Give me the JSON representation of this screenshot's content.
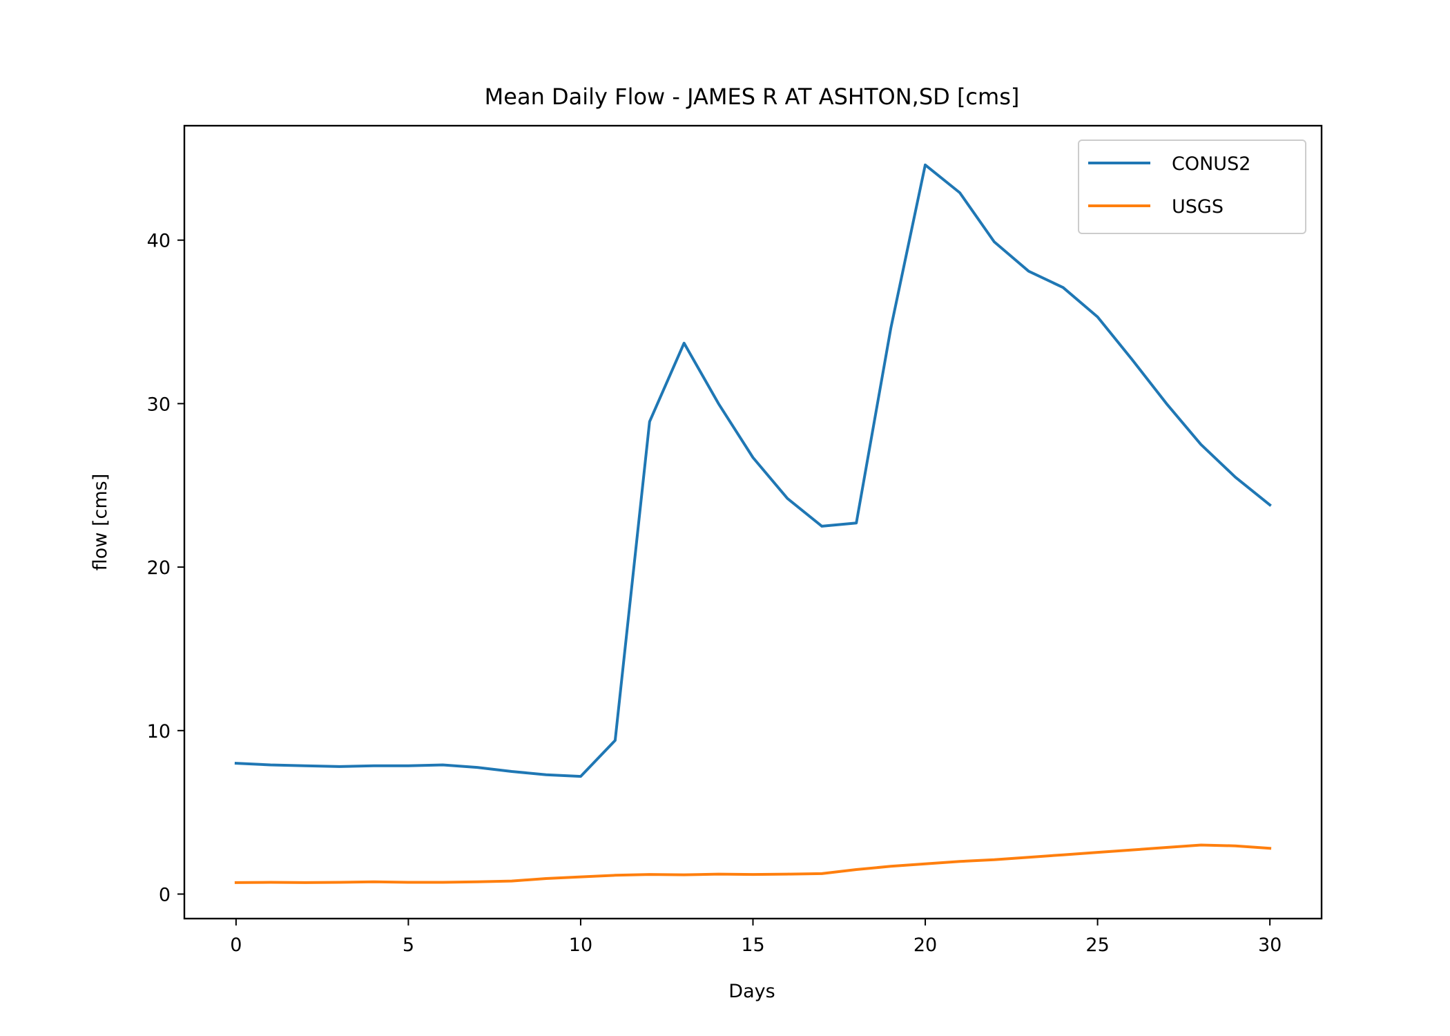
{
  "chart_data": {
    "type": "line",
    "title": "Mean Daily Flow - JAMES R AT ASHTON,SD [cms]",
    "xlabel": "Days",
    "ylabel": "flow [cms]",
    "xlim": [
      -1.5,
      31.5
    ],
    "ylim": [
      -1.5,
      47.0
    ],
    "xticks": [
      0,
      5,
      10,
      15,
      20,
      25,
      30
    ],
    "yticks": [
      0,
      10,
      20,
      30,
      40
    ],
    "grid": false,
    "legend_position": "top-right",
    "x": [
      0,
      1,
      2,
      3,
      4,
      5,
      6,
      7,
      8,
      9,
      10,
      11,
      12,
      13,
      14,
      15,
      16,
      17,
      18,
      19,
      20,
      21,
      22,
      23,
      24,
      25,
      26,
      27,
      28,
      29,
      30
    ],
    "series": [
      {
        "name": "CONUS2",
        "color": "#1f77b4",
        "values": [
          8.0,
          7.9,
          7.85,
          7.8,
          7.85,
          7.85,
          7.9,
          7.75,
          7.5,
          7.3,
          7.2,
          9.4,
          28.9,
          33.7,
          30.0,
          26.7,
          24.2,
          22.5,
          22.7,
          34.6,
          44.6,
          42.9,
          39.9,
          38.1,
          37.1,
          35.3,
          32.7,
          30.0,
          27.5,
          25.5,
          23.8
        ]
      },
      {
        "name": "USGS",
        "color": "#ff7f0e",
        "values": [
          0.7,
          0.72,
          0.7,
          0.72,
          0.75,
          0.72,
          0.72,
          0.75,
          0.8,
          0.95,
          1.05,
          1.15,
          1.2,
          1.18,
          1.22,
          1.2,
          1.22,
          1.25,
          1.5,
          1.7,
          1.85,
          2.0,
          2.1,
          2.25,
          2.4,
          2.55,
          2.7,
          2.85,
          3.0,
          2.95,
          2.8
        ]
      }
    ]
  }
}
